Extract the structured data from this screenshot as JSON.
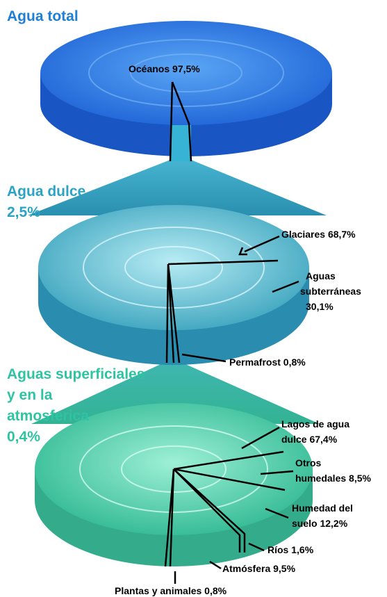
{
  "sections": [
    {
      "title": [
        "Agua total"
      ],
      "labels": [
        [
          "Océanos 97,5%"
        ]
      ]
    },
    {
      "title": [
        "Agua dulce",
        "2,5%"
      ],
      "labels": [
        [
          "Glaciares 68,7%"
        ],
        [
          "Aguas",
          "subterráneas",
          "30,1%"
        ],
        [
          "Permafrost 0,8%"
        ]
      ]
    },
    {
      "title": [
        "Aguas superficiales",
        "y en la",
        "atmosferica",
        "0,4%"
      ],
      "labels": [
        [
          "Lagos de agua",
          "dulce 67,4%"
        ],
        [
          "Otros",
          "humedales 8,5%"
        ],
        [
          "Humedad del",
          "suelo 12,2%"
        ],
        [
          "Ríos 1,6%"
        ],
        [
          "Atmósfera 9,5%"
        ],
        [
          "Plantas y animales 0,8%"
        ]
      ]
    }
  ]
}
